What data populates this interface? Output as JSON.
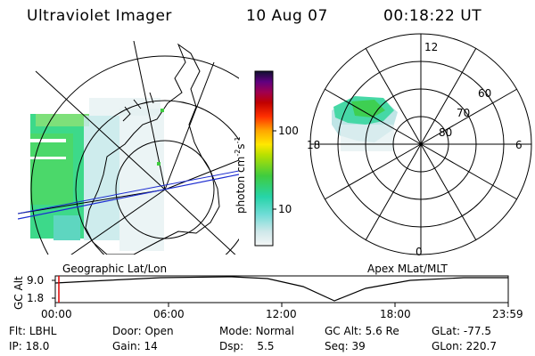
{
  "header": {
    "title": "Ultraviolet Imager",
    "date": "10 Aug 07",
    "time": "00:18:22 UT"
  },
  "colorbar": {
    "unit_label": "photon cm",
    "unit_sup1": "-2",
    "unit_s": "s",
    "unit_sup2": "-1",
    "ticks": [
      "100",
      "10"
    ]
  },
  "panels": {
    "geo_label": "Geographic Lat/Lon",
    "mag_label": "Apex MLat/MLT"
  },
  "polar": {
    "mlt_labels": [
      "12",
      "6",
      "0",
      "18"
    ],
    "lat_labels": [
      "60",
      "70",
      "80"
    ]
  },
  "altitude_plot": {
    "ylabel": "GC Alt",
    "yticks": [
      "9.0",
      "1.8"
    ],
    "xticks": [
      "00:00",
      "06:00",
      "12:00",
      "18:00",
      "23:59"
    ]
  },
  "status": {
    "row1": [
      {
        "key": "Flt:",
        "value": "LBHL"
      },
      {
        "key": "Door:",
        "value": "Open"
      },
      {
        "key": "Mode:",
        "value": "Normal"
      },
      {
        "key": "GC Alt:",
        "value": "5.6 Re"
      },
      {
        "key": "GLat:",
        "value": "-77.5"
      }
    ],
    "row2": [
      {
        "key": "IP:",
        "value": "18.0"
      },
      {
        "key": "Gain:",
        "value": "14"
      },
      {
        "key": "Dsp:",
        "value": "5.5"
      },
      {
        "key": "Seq:",
        "value": "39"
      },
      {
        "key": "GLon:",
        "value": "220.7"
      }
    ]
  },
  "colors": {
    "aurora_green": "#2ecc40",
    "aurora_cyan": "#3fd7c6",
    "aurora_light": "#cfe8ea",
    "orbit_blue": "#1c2cd0",
    "marker_red": "#e00000"
  }
}
